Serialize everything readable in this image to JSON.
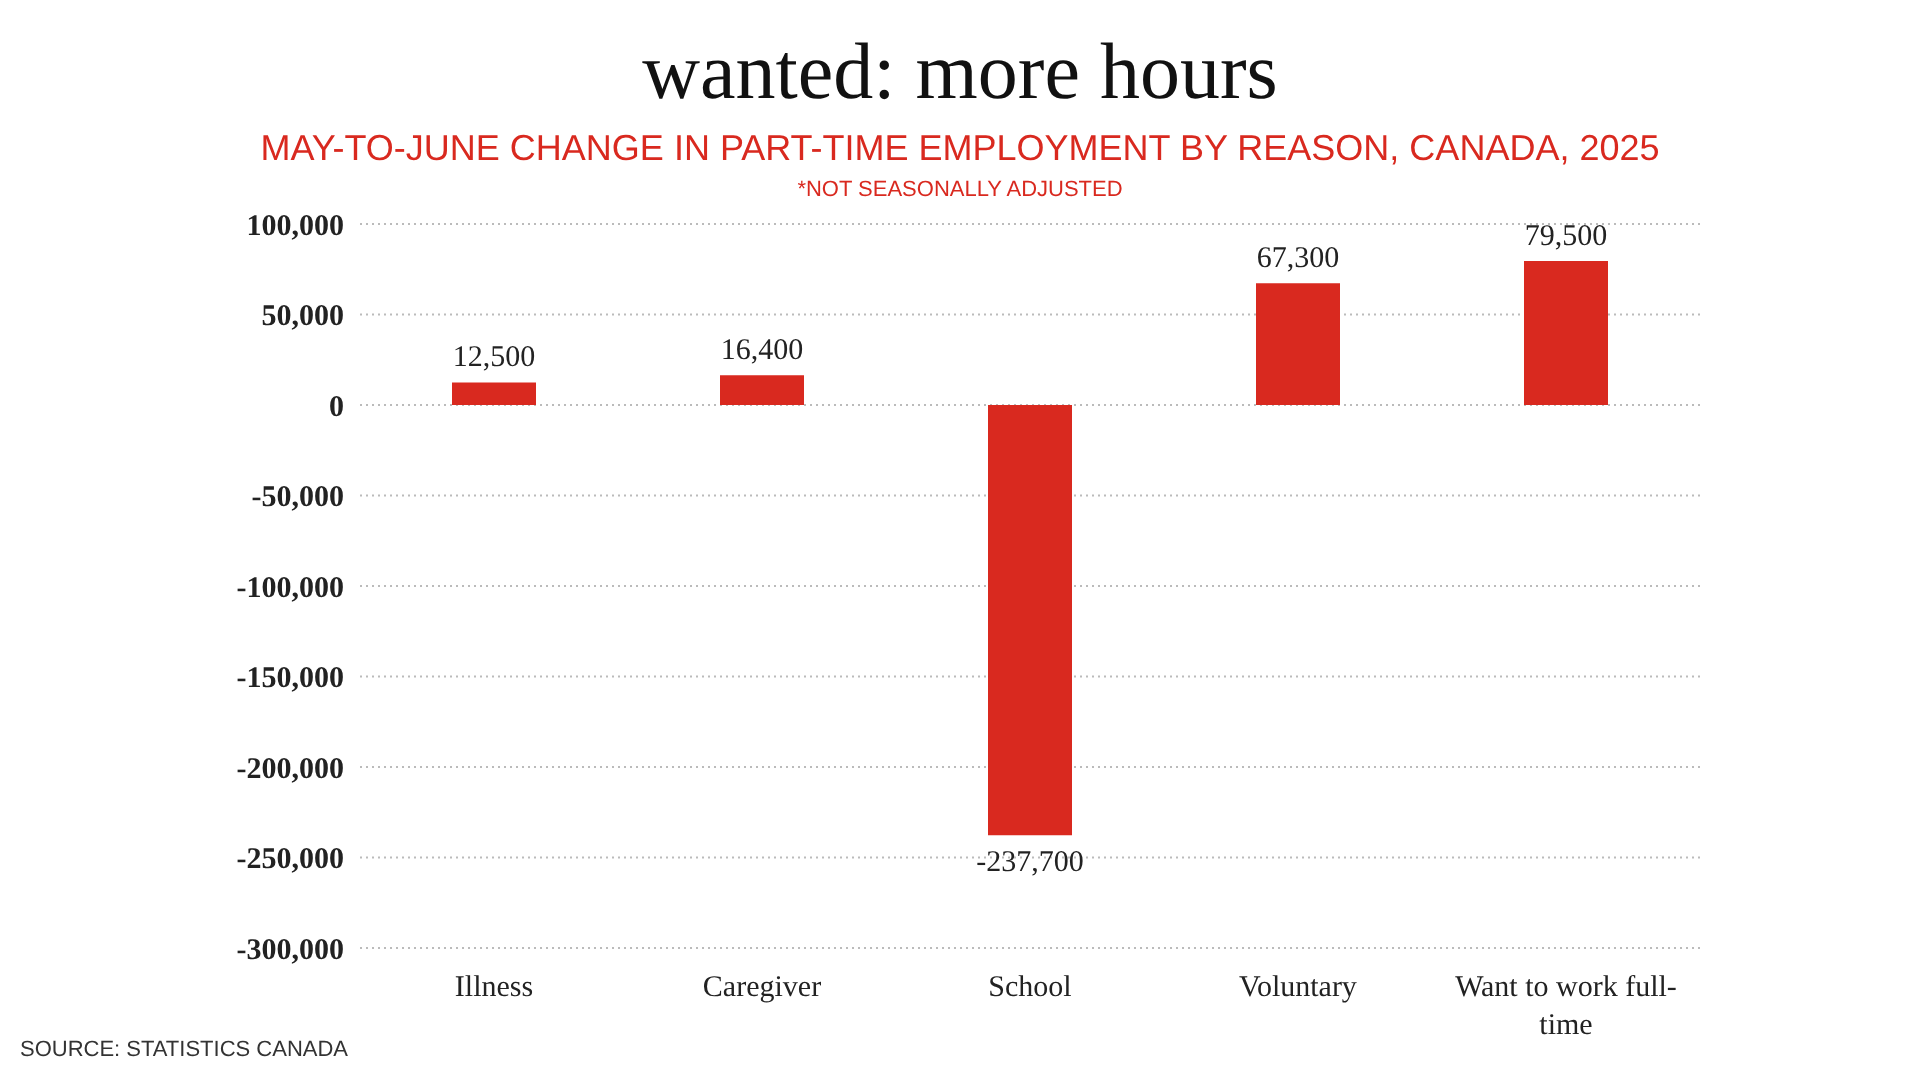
{
  "chart_data": {
    "type": "bar",
    "title": "wanted: more hours",
    "subtitle": "MAY-TO-JUNE CHANGE IN PART-TIME EMPLOYMENT BY REASON, CANADA, 2025",
    "annotations": [
      "*NOT SEASONALLY ADJUSTED",
      "SOURCE: STATISTICS CANADA"
    ],
    "categories": [
      "Illness",
      "Caregiver",
      "School",
      "Voluntary",
      "Want to work full-time"
    ],
    "values": [
      12500,
      16400,
      -237700,
      67300,
      79500
    ],
    "value_labels": [
      "12,500",
      "16,400",
      "-237,700",
      "67,300",
      "79,500"
    ],
    "color": "#d9291f",
    "ylim": [
      -300000,
      100000
    ],
    "yticks": [
      {
        "value": -300000,
        "label": "-300,000"
      },
      {
        "value": -250000,
        "label": "-250,000"
      },
      {
        "value": -200000,
        "label": "-200,000"
      },
      {
        "value": -150000,
        "label": "-150,000"
      },
      {
        "value": -100000,
        "label": "-100,000"
      },
      {
        "value": -50000,
        "label": "-50,000"
      },
      0,
      {
        "value": 50000,
        "label": "50,000"
      },
      {
        "value": 100000,
        "label": "100,000"
      }
    ],
    "grid": "y"
  }
}
